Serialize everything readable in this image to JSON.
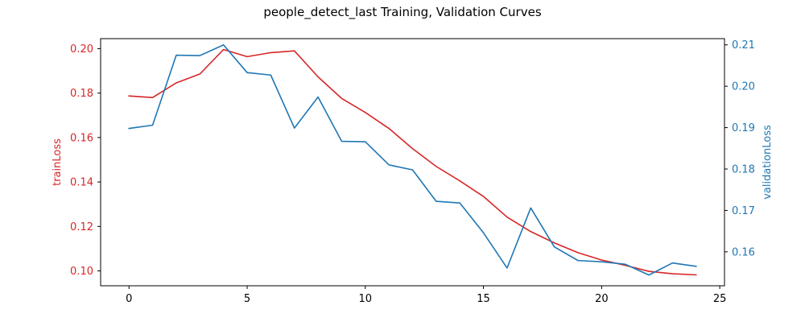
{
  "colors": {
    "train": "#d62728",
    "validation": "#1f77b4",
    "axes": "#000000",
    "background": "#ffffff"
  },
  "chart_data": {
    "type": "line",
    "title": "people_detect_last Training, Validation Curves",
    "xlabel": "",
    "x": [
      0,
      1,
      2,
      3,
      4,
      5,
      6,
      7,
      8,
      9,
      10,
      11,
      12,
      13,
      14,
      15,
      16,
      17,
      18,
      19,
      20,
      21,
      22,
      23,
      24
    ],
    "xlim": [
      -1.2,
      25.2
    ],
    "xticks": [
      0,
      5,
      10,
      15,
      20,
      25
    ],
    "grid": false,
    "legend": "none",
    "axes": {
      "left": {
        "label": "trainLoss",
        "ylim": [
          0.0933,
          0.2045
        ],
        "ticks": [
          0.1,
          0.12,
          0.14,
          0.16,
          0.18,
          0.2
        ],
        "tick_labels": [
          "0.10",
          "0.12",
          "0.14",
          "0.16",
          "0.18",
          "0.20"
        ]
      },
      "right": {
        "label": "validationLoss",
        "ylim": [
          0.1518,
          0.2115
        ],
        "ticks": [
          0.16,
          0.17,
          0.18,
          0.19,
          0.2,
          0.21
        ],
        "tick_labels": [
          "0.16",
          "0.17",
          "0.18",
          "0.19",
          "0.20",
          "0.21"
        ]
      }
    },
    "series": [
      {
        "axis": "left",
        "color": "#d62728",
        "values": [
          0.1787,
          0.178,
          0.1846,
          0.1886,
          0.1996,
          0.1964,
          0.1982,
          0.199,
          0.1873,
          0.1776,
          0.1713,
          0.1641,
          0.155,
          0.147,
          0.1405,
          0.1335,
          0.1242,
          0.1177,
          0.1126,
          0.1082,
          0.1049,
          0.1025,
          0.0998,
          0.0987,
          0.0982
        ]
      },
      {
        "axis": "right",
        "color": "#1f77b4",
        "values": [
          0.1898,
          0.1906,
          0.2075,
          0.2074,
          0.21,
          0.2033,
          0.2027,
          0.1899,
          0.1974,
          0.1867,
          0.1866,
          0.181,
          0.1798,
          0.1722,
          0.1718,
          0.1646,
          0.1561,
          0.1706,
          0.1612,
          0.1579,
          0.1576,
          0.157,
          0.1544,
          0.1573,
          0.1565
        ]
      }
    ]
  }
}
